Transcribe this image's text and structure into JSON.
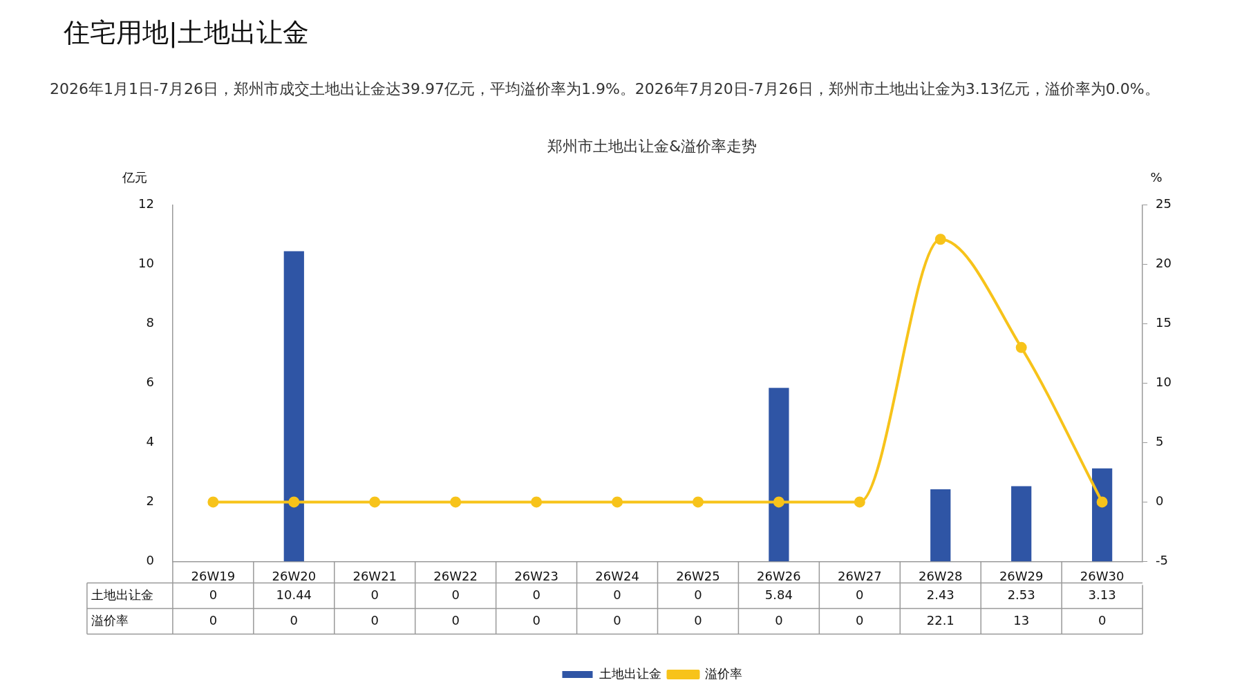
{
  "chart_data": {
    "type": "bar",
    "title": "住宅用地|土地出让金",
    "subtitle": "郑州市土地出让金&溢价率走势",
    "annotations": [
      "2026年1月1日-7月26日，郑州市成交土地出让金达39.97亿元，平均溢价率为1.9%。2026年7月20日-7月26日，郑州市土地出让金为3.13亿元，溢价率为0.0%。"
    ],
    "categories": [
      "26W19",
      "26W20",
      "26W21",
      "26W22",
      "26W23",
      "26W24",
      "26W25",
      "26W26",
      "26W27",
      "26W28",
      "26W29",
      "26W30"
    ],
    "series": [
      {
        "name": "土地出让金",
        "color": "#2f55a5",
        "values": [
          0,
          10.44,
          0,
          0,
          0,
          0,
          0,
          5.84,
          0,
          2.43,
          2.53,
          3.13
        ]
      },
      {
        "name": "溢价率",
        "type": "line",
        "axis": "y2",
        "color": "#f7c31a",
        "marker": "circle",
        "values": [
          0,
          0,
          0,
          0,
          0,
          0,
          0,
          0,
          0,
          22.1,
          13,
          0
        ]
      }
    ],
    "ylabel": "亿元",
    "y2label": "%",
    "ylim": [
      0,
      12
    ],
    "yticks": [
      0,
      2,
      4,
      6,
      8,
      10,
      12
    ],
    "y2lim": [
      -5,
      25
    ],
    "y2ticks": [
      -5,
      0,
      5,
      10,
      15,
      20,
      25
    ],
    "data_labels": true,
    "legend": "bottom"
  }
}
